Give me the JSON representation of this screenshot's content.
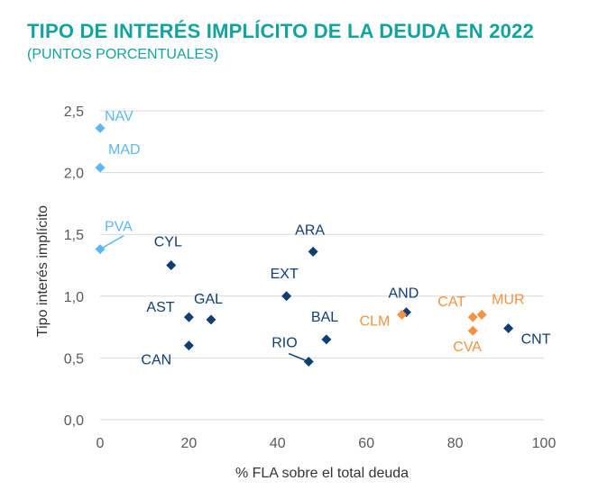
{
  "chart_data": {
    "type": "scatter",
    "title": "TIPO DE INTERÉS IMPLÍCITO DE LA DEUDA EN 2022",
    "subtitle": "(PUNTOS PORCENTUALES)",
    "xlabel": "% FLA sobre el total deuda",
    "ylabel": "Tipo interés implícito",
    "xlim": [
      0,
      100
    ],
    "ylim": [
      0,
      2.5
    ],
    "x_ticks": [
      "0",
      "20",
      "40",
      "60",
      "80",
      "100"
    ],
    "y_ticks": [
      "0,0",
      "0,5",
      "1,0",
      "1,5",
      "2,0",
      "2,5"
    ],
    "grid": "horizontal",
    "colors": {
      "light": "#5bb8f0",
      "dark": "#0f3e73",
      "orange": "#f39242"
    },
    "points": [
      {
        "label": "NAV",
        "x": 0,
        "y": 2.36,
        "color": "light"
      },
      {
        "label": "MAD",
        "x": 0,
        "y": 2.04,
        "color": "light"
      },
      {
        "label": "PVA",
        "x": 0,
        "y": 1.38,
        "color": "light"
      },
      {
        "label": "CYL",
        "x": 16,
        "y": 1.25,
        "color": "dark"
      },
      {
        "label": "ARA",
        "x": 48,
        "y": 1.36,
        "color": "dark"
      },
      {
        "label": "EXT",
        "x": 42,
        "y": 1.0,
        "color": "dark"
      },
      {
        "label": "AST",
        "x": 20,
        "y": 0.83,
        "color": "dark"
      },
      {
        "label": "GAL",
        "x": 25,
        "y": 0.81,
        "color": "dark"
      },
      {
        "label": "CAN",
        "x": 20,
        "y": 0.6,
        "color": "dark"
      },
      {
        "label": "RIO",
        "x": 47,
        "y": 0.47,
        "color": "dark"
      },
      {
        "label": "BAL",
        "x": 51,
        "y": 0.65,
        "color": "dark"
      },
      {
        "label": "AND",
        "x": 69,
        "y": 0.87,
        "color": "dark"
      },
      {
        "label": "CLM",
        "x": 68,
        "y": 0.85,
        "color": "orange"
      },
      {
        "label": "CAT",
        "x": 84,
        "y": 0.83,
        "color": "orange"
      },
      {
        "label": "MUR",
        "x": 86,
        "y": 0.85,
        "color": "orange"
      },
      {
        "label": "CVA",
        "x": 84,
        "y": 0.72,
        "color": "orange"
      },
      {
        "label": "CNT",
        "x": 92,
        "y": 0.74,
        "color": "dark"
      }
    ]
  }
}
